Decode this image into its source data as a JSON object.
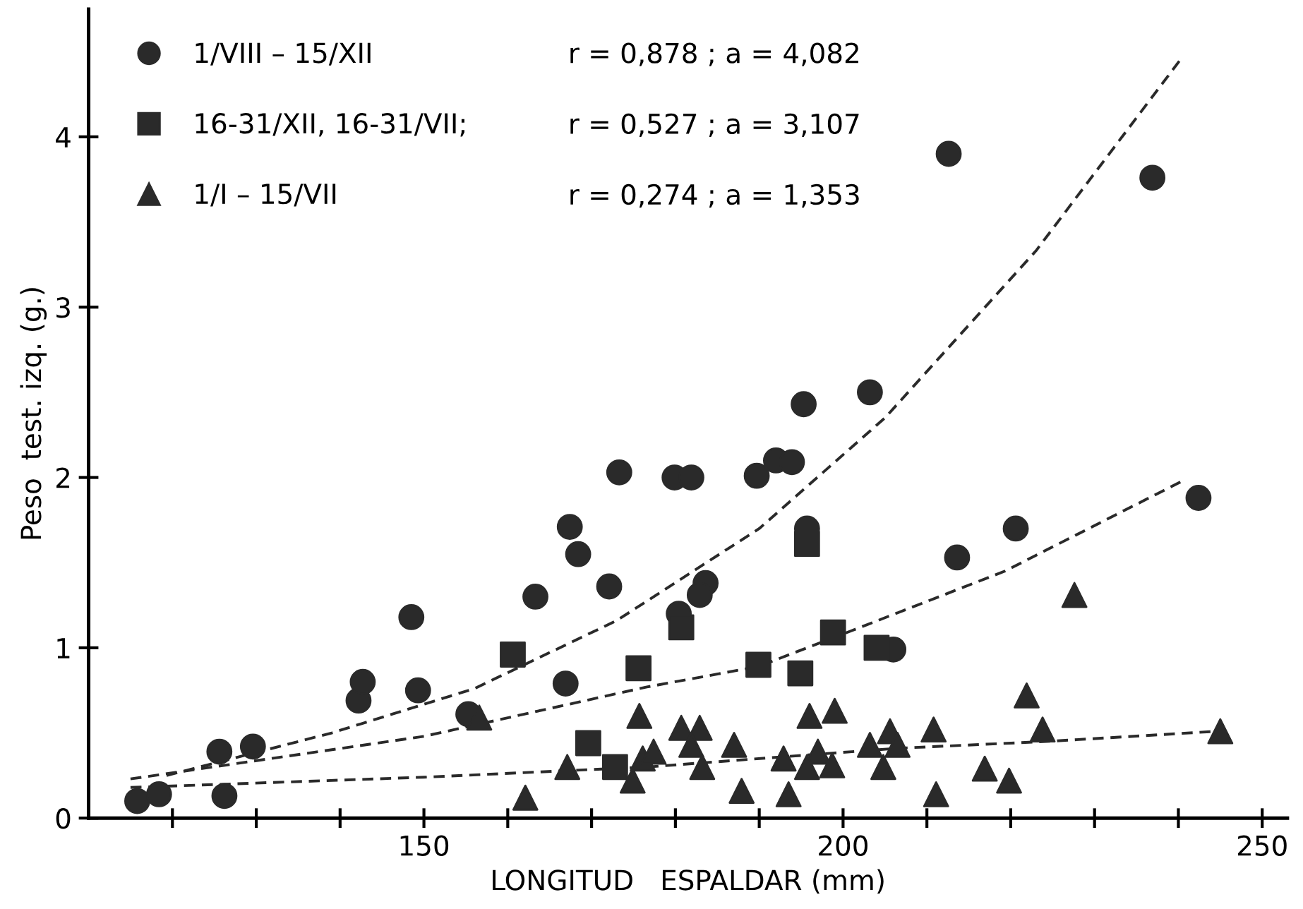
{
  "chart_data": {
    "type": "scatter",
    "xlabel": "LONGITUD   ESPALDAR (mm)",
    "ylabel": "Peso  test. izq. (g.)",
    "xlim": [
      110,
      253
    ],
    "ylim": [
      0,
      4.75
    ],
    "xticks": [
      {
        "value": 120,
        "label": null
      },
      {
        "value": 130,
        "label": null
      },
      {
        "value": 140,
        "label": null
      },
      150,
      {
        "value": 160,
        "label": null
      },
      {
        "value": 170,
        "label": null
      },
      {
        "value": 180,
        "label": null
      },
      {
        "value": 190,
        "label": null
      },
      200,
      {
        "value": 210,
        "label": null
      },
      {
        "value": 220,
        "label": null
      },
      {
        "value": 230,
        "label": null
      },
      {
        "value": 240,
        "label": null
      },
      250
    ],
    "yticks": [
      0,
      1,
      2,
      3,
      4
    ],
    "grid": false,
    "legend": "top left",
    "annotations": [
      "r = 0,878 ; a = 4,082",
      "r = 0,527 ; a = 3,107",
      "r = 0,274 ; a = 1,353"
    ],
    "series": [
      {
        "name": "1/VIII – 15/XII",
        "marker": "circle",
        "color": "#2a2a2a",
        "x": [
          115.8,
          118.4,
          125.6,
          129.6,
          126.2,
          142.2,
          142.7,
          148.5,
          149.3,
          155.3,
          163.3,
          166.9,
          167.4,
          168.4,
          172.1,
          173.3,
          179.9,
          181.9,
          189.7,
          192.0,
          193.9,
          195.3,
          203.2,
          212.6,
          236.9,
          195.7,
          183.6,
          182.9,
          180.4,
          213.6,
          220.6,
          242.4,
          206.0
        ],
        "values": [
          0.1,
          0.14,
          0.39,
          0.42,
          0.13,
          0.69,
          0.8,
          1.18,
          0.75,
          0.61,
          1.3,
          0.79,
          1.71,
          1.55,
          1.36,
          2.03,
          2.0,
          2.0,
          2.01,
          2.1,
          2.09,
          2.43,
          2.5,
          3.9,
          3.76,
          1.7,
          1.38,
          1.31,
          1.2,
          1.53,
          1.7,
          1.88,
          0.99
        ]
      },
      {
        "name": "16-31/XII, 16-31/VII;",
        "marker": "square",
        "color": "#2a2a2a",
        "x": [
          160.6,
          169.6,
          172.8,
          175.6,
          180.7,
          189.9,
          194.9,
          195.7,
          198.8,
          204.0
        ],
        "values": [
          0.96,
          0.44,
          0.3,
          0.88,
          1.12,
          0.9,
          0.85,
          1.61,
          1.09,
          1.0
        ]
      },
      {
        "name": "1/I – 15/VII",
        "marker": "triangle",
        "color": "#2a2a2a",
        "x": [
          156.6,
          162.1,
          167.1,
          174.9,
          175.7,
          176.1,
          177.4,
          180.7,
          182.9,
          181.9,
          183.2,
          187.0,
          187.9,
          192.9,
          193.5,
          196.0,
          199.0,
          197.0,
          195.7,
          198.7,
          203.2,
          205.6,
          206.5,
          204.8,
          210.8,
          211.1,
          216.9,
          219.8,
          221.9,
          223.8,
          227.6,
          245.0
        ],
        "values": [
          0.59,
          0.12,
          0.3,
          0.22,
          0.6,
          0.35,
          0.39,
          0.53,
          0.53,
          0.43,
          0.3,
          0.43,
          0.16,
          0.35,
          0.14,
          0.6,
          0.63,
          0.39,
          0.3,
          0.31,
          0.43,
          0.51,
          0.43,
          0.3,
          0.52,
          0.14,
          0.29,
          0.22,
          0.72,
          0.52,
          1.31,
          0.51
        ]
      },
      {
        "type": "line",
        "line_style": "dashed",
        "color": "#2a2a2a",
        "x": [
          119.3,
          139,
          156,
          173,
          190,
          205,
          223,
          240.5
        ],
        "values": [
          0.25,
          0.5,
          0.76,
          1.16,
          1.7,
          2.35,
          3.33,
          4.47
        ]
      },
      {
        "type": "line",
        "line_style": "dashed",
        "color": "#2a2a2a",
        "x": [
          115,
          150,
          176.6,
          189.9,
          201,
          219.3,
          240.5
        ],
        "values": [
          0.23,
          0.48,
          0.77,
          0.89,
          1.1,
          1.45,
          1.98
        ]
      },
      {
        "type": "line",
        "line_style": "dashed",
        "color": "#2a2a2a",
        "x": [
          115,
          150,
          176.6,
          206.5,
          224.3,
          244.7
        ],
        "values": [
          0.18,
          0.24,
          0.3,
          0.41,
          0.45,
          0.51
        ]
      }
    ]
  }
}
